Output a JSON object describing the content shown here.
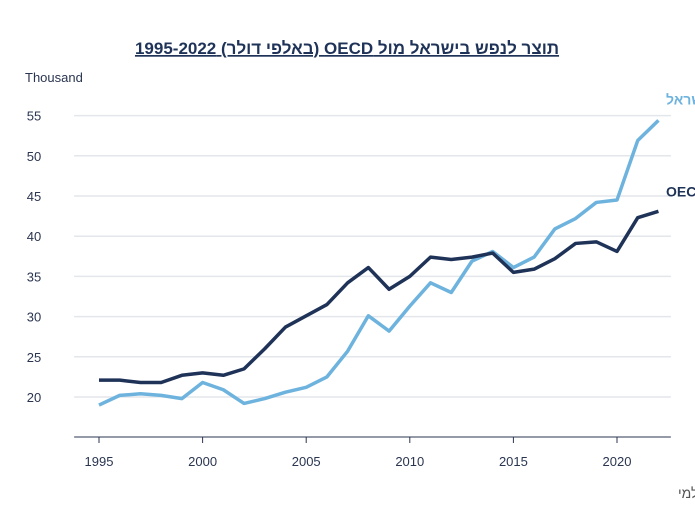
{
  "chart_data": {
    "type": "line",
    "title": "תוצר לנפש בישראל מול OECD (באלפי דולר) 1995-2022",
    "ylabel": "Thousand",
    "source": "*מקור: הבנק העולמי",
    "x": [
      1995,
      1996,
      1997,
      1998,
      1999,
      2000,
      2001,
      2002,
      2003,
      2004,
      2005,
      2006,
      2007,
      2008,
      2009,
      2010,
      2011,
      2012,
      2013,
      2014,
      2015,
      2016,
      2017,
      2018,
      2019,
      2020,
      2021,
      2022
    ],
    "xticks": [
      "1995",
      "2000",
      "2005",
      "2010",
      "2015",
      "2020"
    ],
    "yticks": [
      "20",
      "25",
      "30",
      "35",
      "40",
      "45",
      "50",
      "55"
    ],
    "ylim": [
      15,
      57
    ],
    "xlim": [
      1993.8,
      2022.6
    ],
    "grid": true,
    "series": [
      {
        "name": "ישראל",
        "color": "#6db3de",
        "values": [
          19.0,
          20.2,
          20.4,
          20.2,
          19.8,
          21.8,
          20.9,
          19.2,
          19.8,
          20.6,
          21.2,
          22.5,
          25.7,
          30.1,
          28.2,
          31.3,
          34.2,
          33.0,
          36.9,
          38.1,
          36.1,
          37.4,
          40.9,
          42.2,
          44.2,
          44.5,
          51.9,
          54.4
        ]
      },
      {
        "name": "OECD",
        "color": "#1f3358",
        "values": [
          22.1,
          22.1,
          21.8,
          21.8,
          22.7,
          23.0,
          22.7,
          23.5,
          26.0,
          28.7,
          30.1,
          31.5,
          34.2,
          36.1,
          33.4,
          35.0,
          37.4,
          37.1,
          37.4,
          37.9,
          35.5,
          35.9,
          37.2,
          39.1,
          39.3,
          38.1,
          42.3,
          43.1
        ]
      }
    ]
  }
}
